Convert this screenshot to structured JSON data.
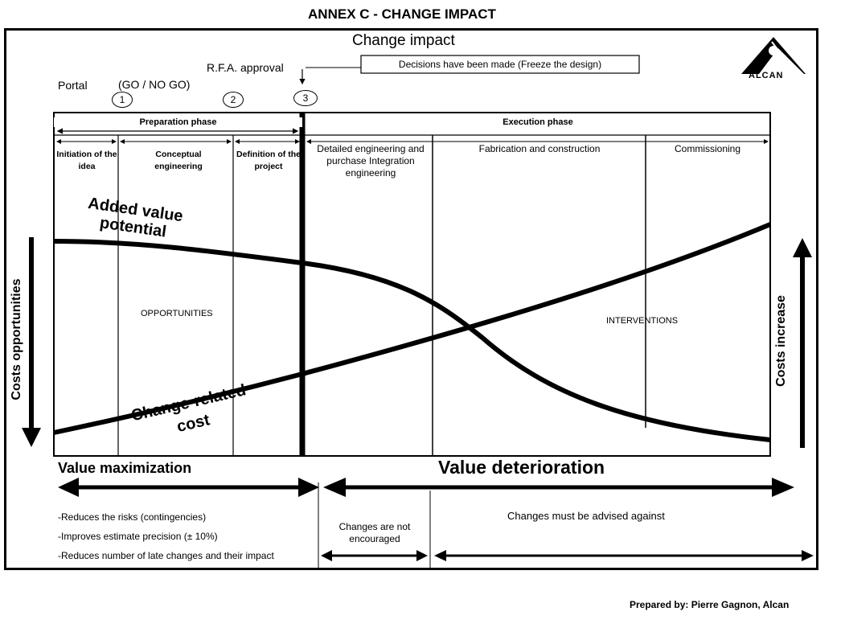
{
  "title": "ANNEX C - CHANGE IMPACT",
  "subtitle": "Change impact",
  "rfa_label": "R.F.A. approval",
  "decision_box": "Decisions have been made (Freeze the design)",
  "logo_text": "ALCAN",
  "portal": {
    "label": "Portal",
    "gonogo": "(GO / NO GO)",
    "gates": [
      "1",
      "2",
      "3"
    ]
  },
  "phases": {
    "preparation": "Preparation phase",
    "execution": "Execution phase"
  },
  "stages": [
    "Initiation of the idea",
    "Conceptual engineering",
    "Definition of the project",
    "Detailed engineering and purchase Integration engineering",
    "Fabrication and construction",
    "Commissioning"
  ],
  "curves": {
    "added_value": "Added value potential",
    "change_cost": "Change-related cost"
  },
  "regions": {
    "opportunities": "OPPORTUNITIES",
    "interventions": "INTERVENTIONS"
  },
  "side_labels": {
    "left": "Costs opportunities",
    "right": "Costs increase"
  },
  "bottom": {
    "value_max": "Value maximization",
    "value_det": "Value deterioration",
    "benefits": [
      "-Reduces the risks (contingencies)",
      "-Improves estimate precision (± 10%)",
      "-Reduces number of late changes and their impact"
    ],
    "not_encouraged": "Changes are not encouraged",
    "advised_against": "Changes must be advised against"
  },
  "footer": "Prepared by:  Pierre Gagnon, Alcan"
}
